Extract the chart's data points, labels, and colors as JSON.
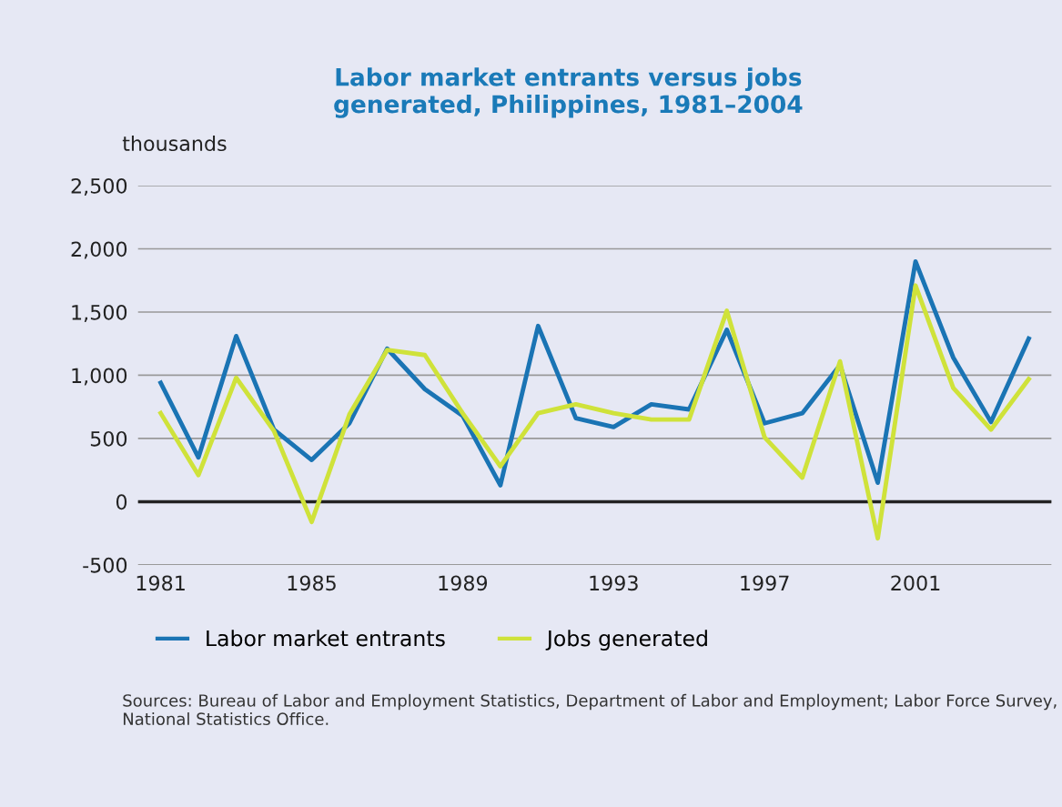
{
  "chart_data": {
    "type": "line",
    "title": "Labor market entrants versus jobs\ngenerated, Philippines, 1981–2004",
    "ylabel": "thousands",
    "x": [
      1981,
      1982,
      1983,
      1984,
      1985,
      1986,
      1987,
      1988,
      1989,
      1990,
      1991,
      1992,
      1993,
      1994,
      1995,
      1996,
      1997,
      1998,
      1999,
      2000,
      2001,
      2002,
      2003,
      2004
    ],
    "series": [
      {
        "name": "Labor market entrants",
        "color": "#1a74b4",
        "values": [
          940,
          350,
          1310,
          570,
          330,
          620,
          1210,
          890,
          680,
          130,
          1390,
          660,
          590,
          770,
          730,
          1360,
          620,
          700,
          1080,
          150,
          1900,
          1140,
          630,
          1290
        ]
      },
      {
        "name": "Jobs generated",
        "color": "#cfe23a",
        "values": [
          700,
          210,
          980,
          560,
          -160,
          690,
          1200,
          1160,
          700,
          280,
          700,
          770,
          700,
          650,
          650,
          1510,
          510,
          190,
          1110,
          -290,
          1710,
          900,
          570,
          970
        ]
      }
    ],
    "xlim": [
      1980.4,
      2004.6
    ],
    "xticks": [
      1981,
      1985,
      1989,
      1993,
      1997,
      2001
    ],
    "ylim": [
      -500,
      2500
    ],
    "yticks": [
      {
        "value": -500,
        "label": "-500"
      },
      0,
      {
        "value": 500,
        "label": "500"
      },
      {
        "value": 1000,
        "label": "1,000"
      },
      {
        "value": 1500,
        "label": "1,500"
      },
      {
        "value": 2000,
        "label": "2,000"
      },
      {
        "value": 2500,
        "label": "2,500"
      }
    ],
    "ref_lines": [
      {
        "axis": "y",
        "value": 0,
        "color": "#222222"
      }
    ],
    "grid": "y",
    "legend": "bottom",
    "line_style": "solid",
    "marker": "none",
    "annotations": [
      "Sources: Bureau of Labor and Employment Statistics, Department of Labor and Employment; Labor Force Survey, National Statistics Office."
    ]
  }
}
